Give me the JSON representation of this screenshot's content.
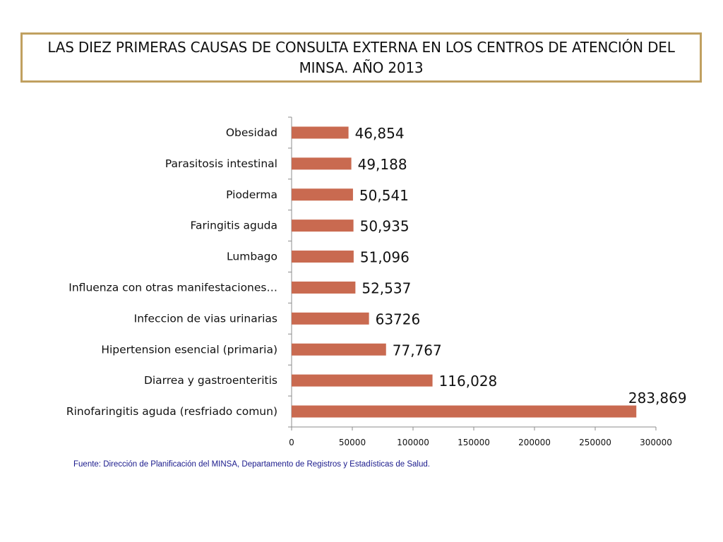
{
  "slide": {
    "title": "LAS  DIEZ PRIMERAS CAUSAS DE CONSULTA EXTERNA EN LOS CENTROS DE ATENCIÓN DEL MINSA. AÑO 2013",
    "source": "Fuente: Dirección de Planificación del MINSA, Departamento de Registros y Estadísticas de Salud.",
    "colors": {
      "bar": "#c96a50",
      "title_border": "#c0a060",
      "source_text": "#1a1a8c",
      "axis": "#8c8c8c"
    }
  },
  "chart_data": {
    "type": "bar",
    "orientation": "horizontal",
    "title": "LAS  DIEZ PRIMERAS CAUSAS DE CONSULTA EXTERNA EN LOS CENTROS DE ATENCIÓN DEL MINSA. AÑO 2013",
    "categories": [
      "Obesidad",
      "Parasitosis intestinal",
      "Pioderma",
      "Faringitis aguda",
      "Lumbago",
      "Influenza con otras manifestaciones…",
      "Infeccion de vias urinarias",
      "Hipertension esencial (primaria)",
      "Diarrea y gastroenteritis",
      "Rinofaringitis aguda (resfriado comun)"
    ],
    "values": [
      46854,
      49188,
      50541,
      50935,
      51096,
      52537,
      63726,
      77767,
      116028,
      283869
    ],
    "data_labels": [
      "46,854",
      "49,188",
      "50,541",
      "50,935",
      "51,096",
      "52,537",
      "63726",
      "77,767",
      "116,028",
      "283,869"
    ],
    "xlim": [
      0,
      300000
    ],
    "xticks": [
      0,
      50000,
      100000,
      150000,
      200000,
      250000,
      300000
    ],
    "xtick_labels": [
      "0",
      "50000",
      "100000",
      "150000",
      "200000",
      "250000",
      "300000"
    ],
    "xlabel": "",
    "ylabel": "",
    "grid": false,
    "legend": "none"
  }
}
